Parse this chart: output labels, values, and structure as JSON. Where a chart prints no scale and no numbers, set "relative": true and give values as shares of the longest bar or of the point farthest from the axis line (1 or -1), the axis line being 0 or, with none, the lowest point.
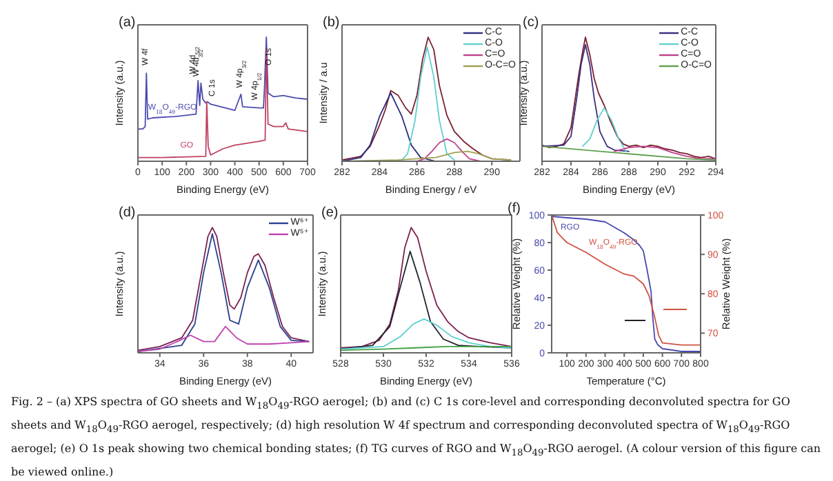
{
  "chart_data": [
    {
      "type": "line",
      "title": "(a)",
      "xlabel": "Binding Energy (eV)",
      "ylabel": "Intensity (a.u.)",
      "relative": true,
      "marker": "none",
      "xlim": [
        0,
        700
      ],
      "xticks": [
        0,
        100,
        200,
        300,
        400,
        500,
        600,
        700
      ],
      "series": [
        {
          "name": "W$_{18}$O$_{49}$-RGO",
          "color": "#4b4bb0",
          "x": [
            0,
            20,
            30,
            35,
            40,
            60,
            150,
            240,
            248,
            255,
            260,
            268,
            280,
            287,
            300,
            400,
            425,
            432,
            500,
            518,
            522,
            530,
            537,
            560,
            600,
            650,
            700
          ],
          "values": [
            0.26,
            0.26,
            0.28,
            0.71,
            0.34,
            0.35,
            0.36,
            0.38,
            0.65,
            0.45,
            0.63,
            0.5,
            0.47,
            0.48,
            0.46,
            0.41,
            0.54,
            0.44,
            0.43,
            0.43,
            0.58,
            1,
            0.55,
            0.52,
            0.53,
            0.51,
            0.5
          ]
        },
        {
          "name": "GO",
          "color": "#c04060",
          "x": [
            0,
            100,
            280,
            284,
            290,
            300,
            350,
            400,
            500,
            525,
            530,
            537,
            560,
            600,
            610,
            620,
            700
          ],
          "values": [
            0.03,
            0.03,
            0.04,
            0.48,
            0.12,
            0.05,
            0.1,
            0.13,
            0.16,
            0.17,
            0.9,
            0.3,
            0.28,
            0.28,
            0.31,
            0.26,
            0.24
          ]
        }
      ],
      "annotations": [
        {
          "text": "W 4f",
          "x": 35,
          "y": 0.75
        },
        {
          "text": "W 4d$_{5/2}$",
          "x": 247,
          "y": 0.68
        },
        {
          "text": "W 4d$_{3/2}$",
          "x": 262,
          "y": 0.66
        },
        {
          "text": "C 1s",
          "x": 287,
          "y": 0.5
        },
        {
          "text": "W 4p$_{3/2}$",
          "x": 425,
          "y": 0.57
        },
        {
          "text": "W 4p$_{1/2}$",
          "x": 505,
          "y": 0.47
        },
        {
          "text": "O 1s",
          "x": 520,
          "y": 0.75
        }
      ]
    },
    {
      "type": "line",
      "title": "(b)",
      "xlabel": "Binding Energy / eV",
      "ylabel": "Intensity / a.u",
      "relative": true,
      "marker": "none",
      "legend": "top right",
      "xlim": [
        282,
        291.5
      ],
      "xticks": [
        282,
        284,
        286,
        288,
        290
      ],
      "series": [
        {
          "color": "#7a1f2e",
          "x": [
            282,
            283,
            283.5,
            284,
            284.3,
            284.6,
            285,
            285.4,
            285.7,
            286,
            286.3,
            286.6,
            286.9,
            287.2,
            287.6,
            288,
            288.5,
            289,
            289.5,
            290,
            291
          ],
          "values": [
            0.01,
            0.04,
            0.12,
            0.29,
            0.41,
            0.57,
            0.53,
            0.43,
            0.38,
            0.53,
            0.82,
            1,
            0.9,
            0.61,
            0.37,
            0.24,
            0.16,
            0.1,
            0.05,
            0.02,
            0.01
          ]
        },
        {
          "name": "C-C",
          "color": "#2e2e80",
          "x": [
            282,
            283,
            283.5,
            284,
            284.6,
            285.2,
            285.7,
            286.2,
            287,
            288,
            290
          ],
          "values": [
            0,
            0.03,
            0.13,
            0.36,
            0.55,
            0.36,
            0.13,
            0.03,
            0,
            0,
            0
          ]
        },
        {
          "name": "C-O",
          "color": "#5fcfd0",
          "x": [
            285.2,
            285.5,
            285.9,
            286.2,
            286.55,
            286.9,
            287.2,
            287.6,
            288
          ],
          "values": [
            0.01,
            0.06,
            0.33,
            0.68,
            0.92,
            0.68,
            0.33,
            0.06,
            0.01
          ]
        },
        {
          "name": "C=O",
          "color": "#c0408a",
          "x": [
            286,
            286.4,
            286.8,
            287.2,
            287.6,
            288,
            288.4,
            288.8,
            289.4,
            290
          ],
          "values": [
            0,
            0.02,
            0.08,
            0.15,
            0.18,
            0.15,
            0.08,
            0.02,
            0,
            0
          ]
        },
        {
          "name": "O-C=O",
          "color": "#a0a050",
          "x": [
            282,
            285,
            287,
            288,
            288.7,
            289.3,
            290,
            291
          ],
          "values": [
            0,
            0.01,
            0.03,
            0.07,
            0.08,
            0.06,
            0.02,
            0.01
          ]
        }
      ]
    },
    {
      "type": "line",
      "title": "(c)",
      "xlabel": "Binding Energy (eV)",
      "ylabel": "Intensity (a.u.)",
      "relative": true,
      "marker": "none",
      "legend": "top right",
      "xlim": [
        282,
        294
      ],
      "xticks": [
        282,
        284,
        286,
        288,
        290,
        292,
        294
      ],
      "series": [
        {
          "color": "#7a1f2e",
          "x": [
            282,
            282.5,
            283,
            283.5,
            284,
            284.5,
            284.8,
            285,
            285.3,
            285.6,
            285.9,
            286.3,
            286.7,
            287.2,
            287.6,
            288,
            288.5,
            289,
            289.5,
            290,
            290.5,
            291,
            291.5,
            292,
            292.5,
            293,
            293.5,
            294
          ],
          "values": [
            0.13,
            0.11,
            0.12,
            0.14,
            0.27,
            0.67,
            0.88,
            1,
            0.86,
            0.67,
            0.55,
            0.45,
            0.33,
            0.2,
            0.14,
            0.12,
            0.13,
            0.11,
            0.13,
            0.12,
            0.1,
            0.09,
            0.07,
            0.06,
            0.04,
            0.03,
            0.04,
            0.02
          ]
        },
        {
          "name": "C-C",
          "color": "#3a2e80",
          "x": [
            282,
            283.5,
            284,
            284.4,
            284.7,
            285,
            285.3,
            285.6,
            286,
            286.5,
            287,
            288
          ],
          "values": [
            0.12,
            0.13,
            0.2,
            0.51,
            0.78,
            0.94,
            0.78,
            0.51,
            0.24,
            0.12,
            0.09,
            0.08
          ]
        },
        {
          "name": "C-O",
          "color": "#5fcfd0",
          "x": [
            284.8,
            285.3,
            285.8,
            286.3,
            286.8,
            287.3,
            287.8
          ],
          "values": [
            0.12,
            0.18,
            0.33,
            0.43,
            0.33,
            0.18,
            0.08
          ]
        },
        {
          "name": "C=O",
          "color": "#c0408a",
          "x": [
            287,
            288,
            289,
            290,
            291,
            292,
            293,
            294
          ],
          "values": [
            0.08,
            0.11,
            0.12,
            0.11,
            0.07,
            0.04,
            0.02,
            0.02
          ]
        },
        {
          "name": "O-C=O",
          "color": "#60a050",
          "x": [
            282,
            286,
            289,
            292,
            294
          ],
          "values": [
            0.12,
            0.08,
            0.05,
            0.02,
            0.01
          ]
        }
      ]
    },
    {
      "type": "line",
      "title": "(d)",
      "xlabel": "Binding Energy (eV)",
      "ylabel": "Intensity (a.u.)",
      "relative": true,
      "marker": "none",
      "legend": "top right",
      "xlim": [
        33,
        41
      ],
      "xticks": [
        34,
        36,
        38,
        40
      ],
      "series": [
        {
          "color": "#7a1f4e",
          "x": [
            33,
            34,
            35,
            35.5,
            35.9,
            36.2,
            36.4,
            36.6,
            36.9,
            37.2,
            37.4,
            37.7,
            38,
            38.3,
            38.5,
            38.8,
            39.2,
            39.6,
            40,
            40.8
          ],
          "values": [
            0.02,
            0.05,
            0.12,
            0.26,
            0.64,
            0.93,
            1,
            0.93,
            0.64,
            0.38,
            0.35,
            0.44,
            0.64,
            0.77,
            0.79,
            0.7,
            0.44,
            0.21,
            0.12,
            0.09
          ]
        },
        {
          "name": "W⁶⁺",
          "color": "#2a3f8f",
          "x": [
            33,
            35,
            35.6,
            36,
            36.4,
            36.8,
            37.2,
            37.6,
            38,
            38.5,
            39,
            39.5,
            40,
            40.8
          ],
          "values": [
            0.01,
            0.06,
            0.23,
            0.64,
            0.95,
            0.64,
            0.26,
            0.23,
            0.52,
            0.74,
            0.52,
            0.21,
            0.1,
            0.09
          ]
        },
        {
          "name": "W⁵⁺",
          "color": "#c040b0",
          "x": [
            33,
            34,
            34.8,
            35.4,
            36,
            36.5,
            37,
            37.5,
            38,
            39,
            40,
            40.8
          ],
          "values": [
            0.01,
            0.03,
            0.09,
            0.14,
            0.09,
            0.09,
            0.21,
            0.12,
            0.07,
            0.07,
            0.08,
            0.09
          ]
        }
      ]
    },
    {
      "type": "line",
      "title": "(e)",
      "xlabel": "Binding Energy (eV)",
      "ylabel": "Intensity (a.u.)",
      "relative": true,
      "marker": "none",
      "xlim": [
        528,
        536
      ],
      "xticks": [
        528,
        530,
        532,
        534,
        536
      ],
      "series": [
        {
          "color": "#7a1f4e",
          "x": [
            528,
            529,
            529.8,
            530.3,
            530.7,
            531,
            531.3,
            531.6,
            532,
            532.5,
            533,
            533.5,
            534,
            535,
            536
          ],
          "values": [
            0.04,
            0.05,
            0.1,
            0.23,
            0.5,
            0.84,
            1,
            0.92,
            0.65,
            0.38,
            0.25,
            0.17,
            0.12,
            0.08,
            0.05
          ]
        },
        {
          "color": "#222233",
          "x": [
            528,
            529.5,
            530.3,
            530.8,
            531.25,
            531.7,
            532.2,
            532.8,
            533.5,
            534.5,
            536
          ],
          "values": [
            0.03,
            0.06,
            0.21,
            0.53,
            0.81,
            0.57,
            0.25,
            0.11,
            0.06,
            0.05,
            0.04
          ]
        },
        {
          "color": "#5fcfd0",
          "x": [
            528,
            530,
            530.8,
            531.4,
            531.9,
            532.5,
            533.2,
            534,
            535,
            536
          ],
          "values": [
            0.03,
            0.05,
            0.13,
            0.23,
            0.27,
            0.22,
            0.13,
            0.08,
            0.05,
            0.04
          ]
        },
        {
          "color": "#40a040",
          "x": [
            528,
            530,
            531.5,
            533,
            534.5,
            536
          ],
          "values": [
            0.02,
            0.03,
            0.04,
            0.05,
            0.05,
            0.05
          ]
        }
      ]
    },
    {
      "type": "line",
      "title": "(f)",
      "xlabel": "Temperature (°C)",
      "ylabel": "Relative Weight (%)",
      "y2label": "Relative Weight (%)",
      "marker": "none",
      "xlim": [
        20,
        800
      ],
      "xticks": [
        100,
        200,
        300,
        400,
        500,
        600,
        700,
        800
      ],
      "ylim": [
        0,
        100
      ],
      "yticks": [
        0,
        20,
        40,
        60,
        80,
        100
      ],
      "y2lim": [
        65,
        100
      ],
      "y2ticks": [
        70,
        80,
        90,
        100
      ],
      "series": [
        {
          "name": "RGO",
          "color": "#4848b0",
          "x": [
            20,
            100,
            200,
            300,
            400,
            450,
            480,
            500,
            520,
            540,
            550,
            560,
            575,
            600,
            700,
            800
          ],
          "values": [
            99,
            98,
            97,
            95,
            87,
            82,
            78,
            74,
            60,
            45,
            25,
            10,
            6,
            3,
            1,
            1
          ]
        },
        {
          "name": "W$_{18}$O$_{49}$-RGO",
          "color": "#d05040",
          "axis": "y2",
          "x": [
            20,
            50,
            80,
            100,
            200,
            300,
            400,
            450,
            500,
            530,
            560,
            580,
            600,
            700,
            800
          ],
          "values": [
            100,
            95.5,
            94,
            93,
            90.5,
            87.5,
            85,
            84.5,
            82.5,
            79.5,
            74,
            69.5,
            67.5,
            67,
            67
          ]
        }
      ],
      "annotations": [
        "Fig. 2 – (a) XPS spectra of GO sheets and W$_{18}$O$_{49}$-RGO aerogel; (b) and (c) C 1s core-level and corresponding deconvoluted spectra for GO sheets and W$_{18}$O$_{49}$-RGO aerogel, respectively; (d) high resolution W 4f spectrum and corresponding deconvoluted spectra of W$_{18}$O$_{49}$-RGO aerogel; (e) O 1s peak showing two chemical bonding states; (f) TG curves of RGO and W$_{18}$O$_{49}$-RGO aerogel. (A colour version of this figure can be viewed online.)"
      ]
    }
  ]
}
